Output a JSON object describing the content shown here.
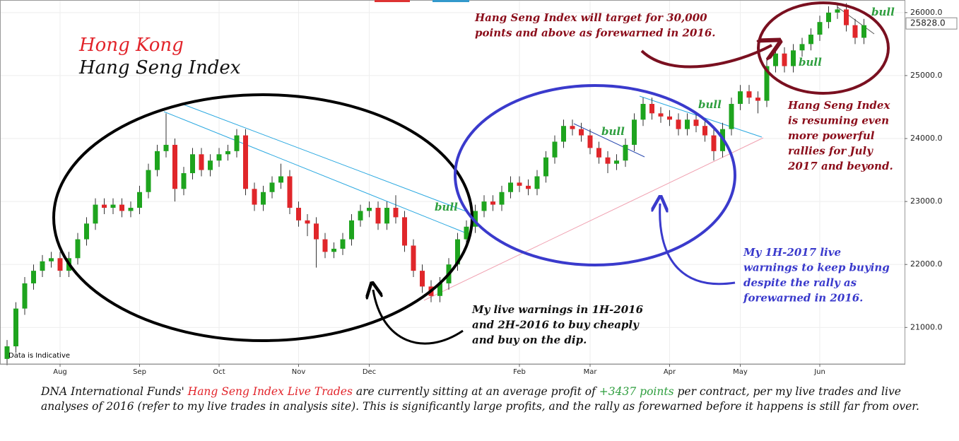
{
  "chart_data": {
    "type": "candlestick",
    "title": [
      "Hong Kong",
      "Hang Seng Index"
    ],
    "title_colors": [
      "#e2232a",
      "#111111"
    ],
    "note": "Data is Indicative",
    "categories": [
      null,
      null,
      null,
      null,
      null,
      null,
      "Aug",
      null,
      null,
      null,
      null,
      null,
      null,
      null,
      null,
      "Sep",
      null,
      null,
      null,
      null,
      null,
      null,
      null,
      null,
      "Oct",
      null,
      null,
      null,
      null,
      null,
      null,
      null,
      null,
      "Nov",
      null,
      null,
      null,
      null,
      null,
      null,
      null,
      "Dec",
      null,
      null,
      null,
      null,
      null,
      null,
      null,
      null,
      null,
      null,
      null,
      null,
      null,
      null,
      null,
      null,
      "Feb",
      null,
      null,
      null,
      null,
      null,
      null,
      null,
      "Mar",
      null,
      null,
      null,
      null,
      null,
      null,
      null,
      null,
      "Apr",
      null,
      null,
      null,
      null,
      null,
      null,
      null,
      "May",
      null,
      null,
      null,
      null,
      null,
      null,
      null,
      null,
      "Jun",
      null,
      null,
      null,
      null,
      null
    ],
    "open": [
      20500,
      20700,
      21300,
      21700,
      21900,
      22050,
      22100,
      21900,
      22100,
      22400,
      22650,
      22950,
      22900,
      22950,
      22850,
      22900,
      23150,
      23500,
      23800,
      23900,
      23200,
      23450,
      23750,
      23500,
      23650,
      23750,
      23800,
      24050,
      23200,
      22950,
      23150,
      23300,
      23400,
      22900,
      22700,
      22650,
      22400,
      22200,
      22250,
      22400,
      22700,
      22850,
      22900,
      22650,
      22900,
      22750,
      22300,
      21900,
      21650,
      21500,
      21700,
      22000,
      22400,
      22600,
      22850,
      23000,
      22950,
      23150,
      23300,
      23250,
      23200,
      23400,
      23700,
      23950,
      24200,
      24150,
      24050,
      23850,
      23700,
      23600,
      23650,
      23900,
      24300,
      24550,
      24400,
      24350,
      24300,
      24150,
      24300,
      24200,
      24050,
      23800,
      24150,
      24550,
      24750,
      24650,
      24600,
      25150,
      25350,
      25150,
      25400,
      25500,
      25650,
      25850,
      26000,
      26050,
      25800,
      25600
    ],
    "high": [
      20800,
      21400,
      21800,
      22000,
      22150,
      22200,
      22200,
      22200,
      22500,
      22750,
      23050,
      23050,
      23050,
      23050,
      23000,
      23250,
      23600,
      23900,
      24400,
      24000,
      23550,
      23850,
      23850,
      23750,
      23850,
      23900,
      24150,
      24150,
      23300,
      23250,
      23400,
      23600,
      23500,
      23000,
      22800,
      22750,
      22500,
      22350,
      22500,
      22800,
      22950,
      23000,
      23000,
      23000,
      23100,
      22850,
      22400,
      22000,
      21750,
      21800,
      22100,
      22500,
      22700,
      22950,
      23100,
      23100,
      23250,
      23400,
      23400,
      23350,
      23500,
      23800,
      24050,
      24300,
      24300,
      24250,
      24150,
      23950,
      23800,
      23750,
      24000,
      24400,
      24650,
      24650,
      24500,
      24450,
      24400,
      24400,
      24400,
      24300,
      24150,
      24250,
      24650,
      24850,
      24850,
      24750,
      25250,
      25450,
      25450,
      25500,
      25600,
      25750,
      25950,
      26100,
      26150,
      26150,
      25900,
      25900
    ],
    "low": [
      20400,
      20600,
      21200,
      21600,
      21800,
      21950,
      21800,
      21800,
      22000,
      22300,
      22550,
      22800,
      22800,
      22750,
      22750,
      22800,
      23050,
      23400,
      23700,
      23000,
      23100,
      23350,
      23400,
      23400,
      23550,
      23650,
      23700,
      23100,
      22850,
      22850,
      23050,
      23200,
      22800,
      22600,
      22450,
      21950,
      22100,
      22100,
      22150,
      22300,
      22600,
      22750,
      22550,
      22550,
      22650,
      22200,
      21800,
      21550,
      21400,
      21400,
      21600,
      21900,
      22300,
      22500,
      22750,
      22850,
      22850,
      23050,
      23150,
      23100,
      23100,
      23300,
      23600,
      23850,
      24050,
      23950,
      23750,
      23600,
      23450,
      23500,
      23550,
      23800,
      24200,
      24300,
      24250,
      24200,
      24050,
      24050,
      24100,
      23950,
      23650,
      23700,
      24050,
      24450,
      24550,
      24400,
      24500,
      25050,
      25050,
      25050,
      25300,
      25400,
      25550,
      25750,
      25900,
      25700,
      25500,
      25500
    ],
    "close": [
      20700,
      21300,
      21700,
      21900,
      22050,
      22100,
      21900,
      22100,
      22400,
      22650,
      22950,
      22900,
      22950,
      22850,
      22900,
      23150,
      23500,
      23800,
      23900,
      23200,
      23450,
      23750,
      23500,
      23650,
      23750,
      23800,
      24050,
      23200,
      22950,
      23150,
      23300,
      23400,
      22900,
      22700,
      22650,
      22400,
      22200,
      22250,
      22400,
      22700,
      22850,
      22900,
      22650,
      22900,
      22750,
      22300,
      21900,
      21650,
      21500,
      21700,
      22000,
      22400,
      22600,
      22850,
      23000,
      22950,
      23150,
      23300,
      23250,
      23200,
      23400,
      23700,
      23950,
      24200,
      24150,
      24050,
      23850,
      23700,
      23600,
      23650,
      23900,
      24300,
      24550,
      24400,
      24350,
      24300,
      24150,
      24300,
      24200,
      24050,
      23800,
      24150,
      24550,
      24750,
      24650,
      24600,
      25150,
      25350,
      25150,
      25400,
      25500,
      25650,
      25850,
      26000,
      26050,
      25800,
      25600,
      25800
    ],
    "up_color": "#1ea41e",
    "down_color": "#e0262a",
    "ylim": [
      20420,
      26200
    ],
    "yticks": [
      {
        "value": 21000,
        "label": "21000.0"
      },
      {
        "value": 22000,
        "label": "22000.0"
      },
      {
        "value": 23000,
        "label": "23000.0"
      },
      {
        "value": 24000,
        "label": "24000.0"
      },
      {
        "value": 25000,
        "label": "25000.0"
      },
      {
        "value": 26000,
        "label": "26000.0"
      }
    ],
    "grid": true,
    "current": {
      "value": 25828,
      "label": "25828.0"
    },
    "annotations": [
      {
        "lines": [
          "Hang Seng Index will target for 30,000",
          "points and above as forewarned in 2016."
        ],
        "color": "#8b0d1a"
      },
      {
        "lines": [
          "Hang Seng Index",
          "is resuming even",
          "more powerful",
          "rallies for July",
          "2017 and beyond."
        ],
        "color": "#8b0d1a"
      },
      {
        "lines": [
          "My 1H-2017 live",
          "warnings to keep buying",
          "despite the rally as",
          "forewarned in 2016."
        ],
        "color": "#3a3acc"
      },
      {
        "lines": [
          "My live warnings in 1H-2016",
          "and 2H-2016 to buy cheaply",
          "and buy on the dip."
        ],
        "color": "#111111"
      }
    ],
    "bull_labels": [
      "bull",
      "bull",
      "bull",
      "bull",
      "bull"
    ],
    "bull_color": "#2e9e3e"
  },
  "footer": [
    {
      "text": "DNA International Funds' ",
      "color": "#111111"
    },
    {
      "text": "Hang Seng Index Live Trades",
      "color": "#e2232a"
    },
    {
      "text": " are currently sitting at an average profit of ",
      "color": "#111111"
    },
    {
      "text": "+3437 points",
      "color": "#2e9e3e"
    },
    {
      "text": " per contract, per my live trades and live analyses of 2016 (refer to my live trades in analysis site).  This is significantly large profits, and the rally as forewarned before it happens is still far from over.",
      "color": "#111111"
    }
  ]
}
